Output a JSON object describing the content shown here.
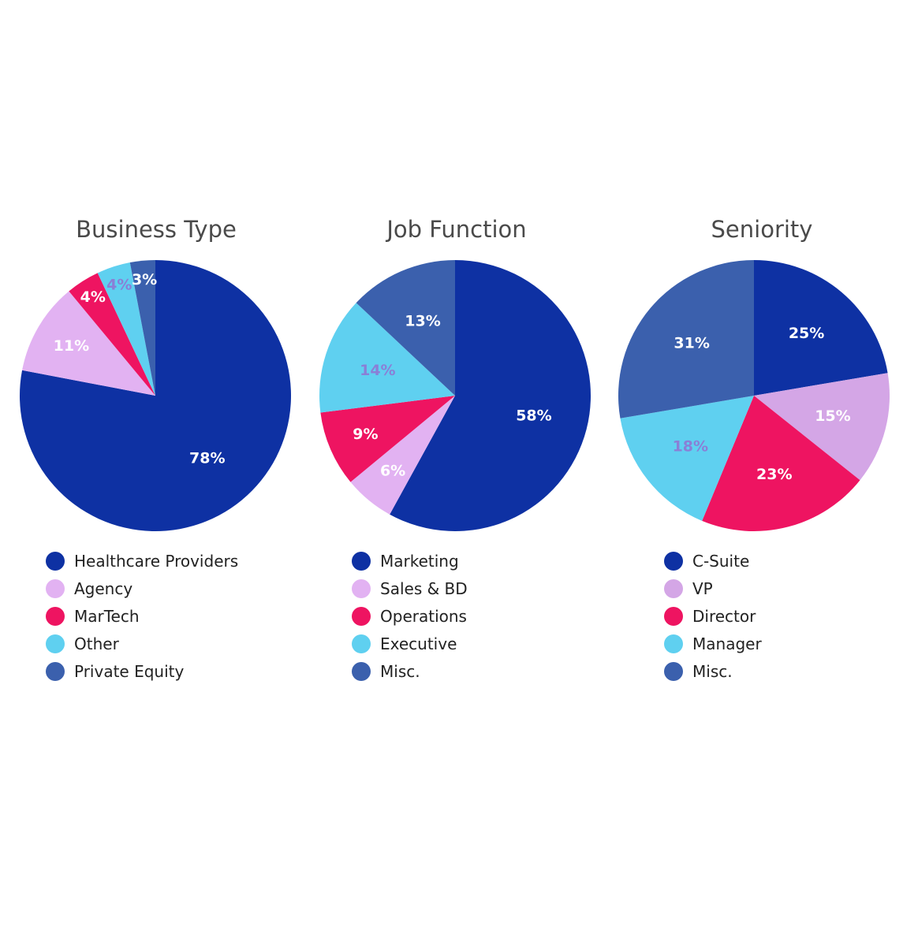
{
  "colors": {
    "blue": "#0e31a3",
    "lavender": "#e2b2f2",
    "pink": "#ee1461",
    "cyan": "#5fd0f0",
    "steel": "#3b60ad"
  },
  "chart_data": [
    {
      "type": "pie",
      "title": "Business Type",
      "categories": [
        "Healthcare Providers",
        "Agency",
        "MarTech",
        "Other",
        "Private Equity"
      ],
      "values": [
        78,
        11,
        4,
        4,
        3
      ],
      "labels": [
        "78%",
        "11%",
        "4%",
        "4%",
        "3%"
      ],
      "colors": [
        "#0e31a3",
        "#e2b2f2",
        "#ee1461",
        "#5fd0f0",
        "#3b60ad"
      ],
      "label_colors": [
        "#ffffff",
        "#ffffff",
        "#ffffff",
        "#8a7fd6",
        "#ffffff"
      ],
      "legend": "bottom"
    },
    {
      "type": "pie",
      "title": "Job Function",
      "categories": [
        "Marketing",
        "Sales & BD",
        "Operations",
        "Executive",
        "Misc."
      ],
      "values": [
        58,
        6,
        9,
        14,
        13
      ],
      "labels": [
        "58%",
        "6%",
        "9%",
        "14%",
        "13%"
      ],
      "colors": [
        "#0e31a3",
        "#e2b2f2",
        "#ee1461",
        "#5fd0f0",
        "#3b60ad"
      ],
      "label_colors": [
        "#ffffff",
        "#ffffff",
        "#ffffff",
        "#8a7fd6",
        "#ffffff"
      ],
      "legend": "bottom"
    },
    {
      "type": "pie",
      "title": "Seniority",
      "categories": [
        "C-Suite",
        "VP",
        "Director",
        "Manager",
        "Misc."
      ],
      "values": [
        25,
        15,
        23,
        18,
        31
      ],
      "labels": [
        "25%",
        "15%",
        "23%",
        "18%",
        "31%"
      ],
      "colors": [
        "#0e31a3",
        "#d4a6e6",
        "#ee1461",
        "#5fd0f0",
        "#3b60ad"
      ],
      "label_colors": [
        "#ffffff",
        "#ffffff",
        "#ffffff",
        "#8a7fd6",
        "#ffffff"
      ],
      "legend": "bottom"
    }
  ]
}
